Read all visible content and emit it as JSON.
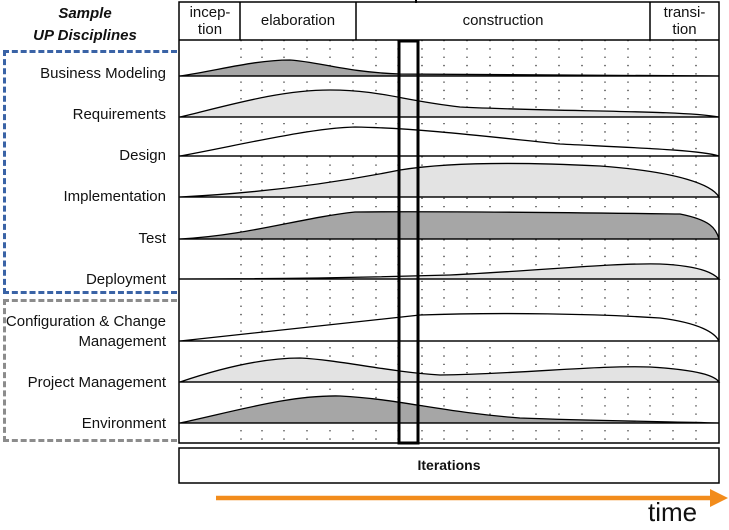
{
  "header": {
    "title_line1": "Sample",
    "title_line2": "UP Disciplines"
  },
  "phases": [
    {
      "label_line1": "incep-",
      "label_line2": "tion"
    },
    {
      "label_line1": "elaboration",
      "label_line2": ""
    },
    {
      "label_line1": "construction",
      "label_line2": ""
    },
    {
      "label_line1": "transi-",
      "label_line2": "tion"
    }
  ],
  "disciplines": [
    {
      "label_line1": "Business Modeling",
      "label_line2": "",
      "fill": "#a6a6a6",
      "group": "core"
    },
    {
      "label_line1": "Requirements",
      "label_line2": "",
      "fill": "#e3e3e3",
      "group": "core"
    },
    {
      "label_line1": "Design",
      "label_line2": "",
      "fill": "#ffffff",
      "group": "core"
    },
    {
      "label_line1": "Implementation",
      "label_line2": "",
      "fill": "#e3e3e3",
      "group": "core"
    },
    {
      "label_line1": "Test",
      "label_line2": "",
      "fill": "#a6a6a6",
      "group": "core"
    },
    {
      "label_line1": "Deployment",
      "label_line2": "",
      "fill": "#e3e3e3",
      "group": "core"
    },
    {
      "label_line1": "Configuration & Change",
      "label_line2": "Management",
      "fill": "#ffffff",
      "group": "support"
    },
    {
      "label_line1": "Project Management",
      "label_line2": "",
      "fill": "#e3e3e3",
      "group": "support"
    },
    {
      "label_line1": "Environment",
      "label_line2": "",
      "fill": "#a6a6a6",
      "group": "support"
    }
  ],
  "footer": {
    "iterations_label": "Iterations",
    "time_label": "time"
  },
  "colors": {
    "core_group_border": "#3a63a6",
    "support_group_border": "#8c8c8c",
    "time_arrow": "#f28c1c",
    "outline": "#000000"
  }
}
